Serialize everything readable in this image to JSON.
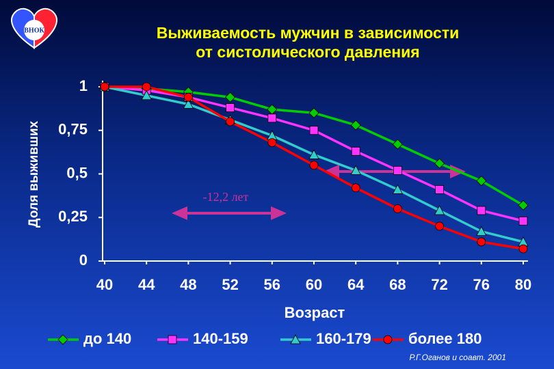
{
  "logo": "ВНОК",
  "chart_data": {
    "type": "line",
    "title": [
      "Выживаемость мужчин в зависимости",
      "от систолического давления"
    ],
    "x_label": "Возраст",
    "y_label": "Доля выживших",
    "x": [
      40,
      44,
      48,
      52,
      56,
      60,
      64,
      68,
      72,
      76,
      80
    ],
    "xlim": [
      40,
      80
    ],
    "xticks": [
      40,
      44,
      48,
      52,
      56,
      60,
      64,
      68,
      72,
      76,
      80
    ],
    "ylim": [
      0,
      1
    ],
    "yticks": [
      0,
      {
        "value": 0.25,
        "label": "0,25"
      },
      {
        "value": 0.5,
        "label": "0,5"
      },
      {
        "value": 0.75,
        "label": "0,75"
      },
      1
    ],
    "series": [
      {
        "name": "до 140",
        "color": "#00cc00",
        "marker": "diamond",
        "values": [
          1.0,
          0.99,
          0.97,
          0.94,
          0.87,
          0.85,
          0.78,
          0.67,
          0.56,
          0.46,
          0.32
        ]
      },
      {
        "name": "140-159",
        "color": "#ff33ff",
        "marker": "square",
        "values": [
          1.0,
          0.98,
          0.94,
          0.88,
          0.82,
          0.75,
          0.63,
          0.52,
          0.41,
          0.29,
          0.23
        ]
      },
      {
        "name": "160-179",
        "color": "#33cccc",
        "marker": "triangle",
        "values": [
          1.0,
          0.95,
          0.9,
          0.81,
          0.72,
          0.61,
          0.52,
          0.41,
          0.29,
          0.17,
          0.11
        ]
      },
      {
        "name": "более 180",
        "color": "#ff0000",
        "marker": "circle",
        "values": [
          1.0,
          1.0,
          0.94,
          0.8,
          0.68,
          0.55,
          0.42,
          0.3,
          0.2,
          0.11,
          0.07
        ]
      }
    ],
    "annotation": "-12,2 лет",
    "source": "Р.Г.Оганов и соавт. 2001"
  }
}
